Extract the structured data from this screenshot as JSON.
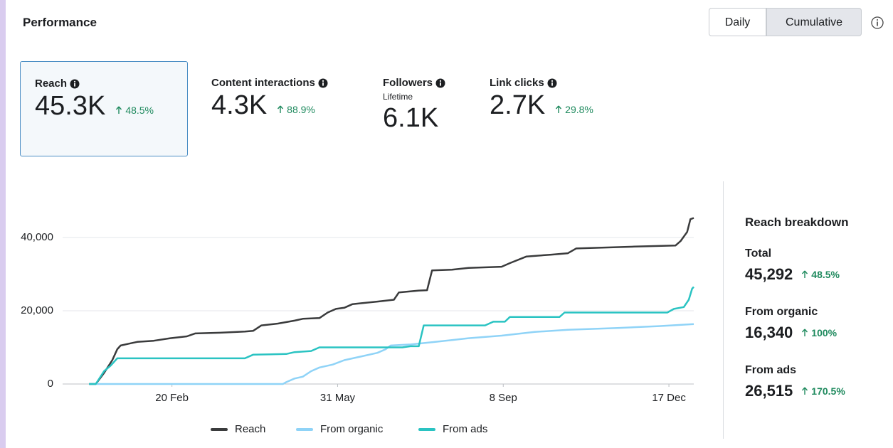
{
  "header": {
    "title": "Performance",
    "toggle": [
      "Daily",
      "Cumulative"
    ],
    "selected_index": 1
  },
  "metrics": [
    {
      "label": "Reach",
      "value": "45.3K",
      "change": "48.5%"
    },
    {
      "label": "Content interactions",
      "value": "4.3K",
      "change": "88.9%"
    },
    {
      "label": "Followers",
      "sublabel": "Lifetime",
      "value": "6.1K"
    },
    {
      "label": "Link clicks",
      "value": "2.7K",
      "change": "29.8%"
    }
  ],
  "breakdown": {
    "title": "Reach breakdown",
    "items": [
      {
        "label": "Total",
        "value": "45,292",
        "change": "48.5%"
      },
      {
        "label": "From organic",
        "value": "16,340",
        "change": "100%"
      },
      {
        "label": "From ads",
        "value": "26,515",
        "change": "170.5%"
      }
    ]
  },
  "chart_data": {
    "type": "line",
    "xlim": [
      -15,
      366
    ],
    "xticks": [
      {
        "value": 51,
        "label": "20 Feb"
      },
      {
        "value": 151,
        "label": "31 May"
      },
      {
        "value": 251,
        "label": "8 Sep"
      },
      {
        "value": 351,
        "label": "17 Dec"
      }
    ],
    "ylim": [
      0,
      46000
    ],
    "yticks": [
      0,
      {
        "value": 20000,
        "label": "20,000"
      },
      {
        "value": 40000,
        "label": "40,000"
      }
    ],
    "grid": true,
    "legend": "bottom",
    "series": [
      {
        "name": "Reach",
        "color": "#3a3b3c",
        "x": [
          1,
          5,
          10,
          15,
          18,
          20,
          25,
          30,
          40,
          50,
          60,
          65,
          80,
          95,
          100,
          105,
          115,
          125,
          130,
          140,
          145,
          150,
          155,
          160,
          175,
          185,
          188,
          200,
          205,
          208,
          220,
          230,
          250,
          255,
          265,
          280,
          290,
          295,
          330,
          355,
          358,
          362,
          364,
          366
        ],
        "values": [
          0,
          0,
          3000,
          6500,
          9500,
          10500,
          11000,
          11500,
          11800,
          12500,
          13000,
          13800,
          14000,
          14300,
          14500,
          16000,
          16500,
          17300,
          17800,
          18000,
          19500,
          20500,
          20800,
          21800,
          22500,
          23000,
          25000,
          25500,
          25600,
          31000,
          31200,
          31700,
          32000,
          33000,
          34800,
          35300,
          35700,
          37000,
          37500,
          37800,
          39000,
          41500,
          45000,
          45292
        ]
      },
      {
        "name": "From organic",
        "color": "#8fd3f7",
        "x": [
          1,
          118,
          120,
          125,
          130,
          135,
          140,
          148,
          155,
          165,
          175,
          180,
          183,
          195,
          210,
          230,
          250,
          270,
          290,
          320,
          345,
          366
        ],
        "values": [
          0,
          0,
          500,
          1500,
          2000,
          3500,
          4500,
          5300,
          6500,
          7500,
          8500,
          9500,
          10500,
          10800,
          11500,
          12500,
          13200,
          14200,
          14800,
          15300,
          15800,
          16340
        ]
      },
      {
        "name": "From ads",
        "color": "#2ac3c2",
        "x": [
          1,
          5,
          10,
          14,
          18,
          95,
          100,
          120,
          125,
          135,
          140,
          190,
          195,
          200,
          203,
          240,
          245,
          252,
          255,
          285,
          288,
          350,
          354,
          360,
          363,
          365,
          366
        ],
        "values": [
          0,
          0,
          3500,
          5000,
          7000,
          7000,
          8000,
          8200,
          8700,
          9000,
          10000,
          10000,
          10300,
          10300,
          16000,
          16000,
          17000,
          17000,
          18300,
          18300,
          19500,
          19500,
          20500,
          21000,
          23000,
          26000,
          26515
        ]
      }
    ]
  }
}
